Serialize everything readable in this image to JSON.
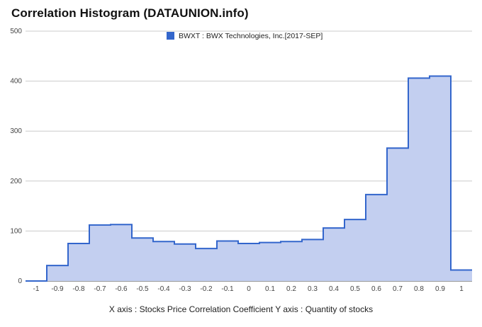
{
  "title": "Correlation Histogram (DATAUNION.info)",
  "caption": "X axis : Stocks Price Correlation Coefficient  Y axis : Quantity of stocks",
  "chart_data": {
    "type": "area",
    "title": "Correlation Histogram (DATAUNION.info)",
    "xlabel": "X axis : Stocks Price Correlation Coefficient",
    "ylabel": "Y axis : Quantity of stocks",
    "xlim": [
      -1.05,
      1.05
    ],
    "ylim": [
      0,
      500
    ],
    "x_ticks": [
      "-1",
      "-0.9",
      "-0.8",
      "-0.7",
      "-0.6",
      "-0.5",
      "-0.4",
      "-0.3",
      "-0.2",
      "-0.1",
      "0",
      "0.1",
      "0.2",
      "0.3",
      "0.4",
      "0.5",
      "0.6",
      "0.7",
      "0.8",
      "0.9",
      "1"
    ],
    "y_ticks": [
      "0",
      "100",
      "200",
      "300",
      "400",
      "500"
    ],
    "grid": true,
    "legend_position": "top-center",
    "series": [
      {
        "name": "BWXT : BWX Technologies, Inc.[2017-SEP]",
        "color": "#3366cc",
        "fill": "#c3cff0",
        "x": [
          -1.0,
          -0.9,
          -0.8,
          -0.7,
          -0.6,
          -0.5,
          -0.4,
          -0.3,
          -0.2,
          -0.1,
          0.0,
          0.1,
          0.2,
          0.3,
          0.4,
          0.5,
          0.6,
          0.7,
          0.8,
          0.9,
          1.0
        ],
        "values": [
          0,
          31,
          75,
          112,
          113,
          86,
          79,
          74,
          65,
          80,
          75,
          77,
          79,
          83,
          106,
          123,
          173,
          266,
          406,
          410,
          22
        ]
      }
    ]
  }
}
